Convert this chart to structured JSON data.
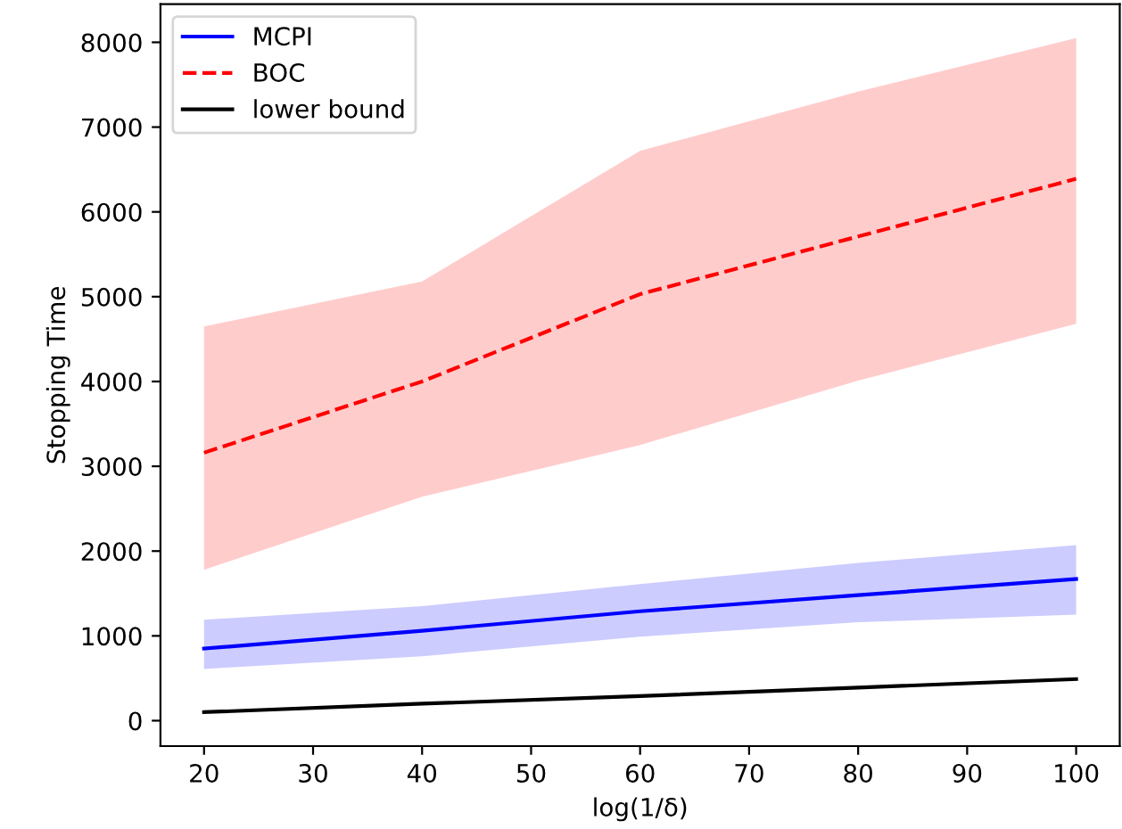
{
  "chart_data": {
    "type": "line",
    "xlabel": "log(1/δ)",
    "ylabel": "Stopping Time",
    "x": [
      20,
      40,
      60,
      80,
      100
    ],
    "series": [
      {
        "name": "MCPI",
        "color": "#0000ff",
        "line_style": "solid",
        "values": [
          850,
          1060,
          1290,
          1480,
          1670
        ],
        "lower": [
          610,
          760,
          990,
          1160,
          1250
        ],
        "upper": [
          1190,
          1350,
          1610,
          1860,
          2070
        ]
      },
      {
        "name": "BOC",
        "color": "#ff0000",
        "line_style": "dashed",
        "values": [
          3160,
          4000,
          5030,
          5710,
          6390
        ],
        "lower": [
          1780,
          2640,
          3250,
          4010,
          4680
        ],
        "upper": [
          4650,
          5180,
          6720,
          7420,
          8050
        ]
      },
      {
        "name": "lower bound",
        "color": "#000000",
        "line_style": "solid",
        "values": [
          100,
          200,
          290,
          390,
          490
        ]
      }
    ],
    "xlim": [
      16,
      104
    ],
    "ylim": [
      -300,
      8450
    ],
    "xticks": [
      20,
      30,
      40,
      50,
      60,
      70,
      80,
      90,
      100
    ],
    "yticks": [
      0,
      1000,
      2000,
      3000,
      4000,
      5000,
      6000,
      7000,
      8000
    ],
    "grid": false,
    "legend": "top left",
    "marker": "none"
  }
}
